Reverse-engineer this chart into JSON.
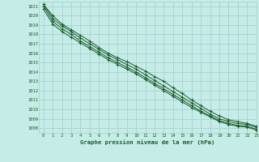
{
  "title": "Graphe pression niveau de la mer (hPa)",
  "background_color": "#c6ece8",
  "grid_color": "#a8d0cc",
  "line_color": "#1a5c2a",
  "text_color": "#1a5c2a",
  "xlim": [
    -0.5,
    23
  ],
  "ylim": [
    1007.5,
    1021.5
  ],
  "xticks": [
    0,
    1,
    2,
    3,
    4,
    5,
    6,
    7,
    8,
    9,
    10,
    11,
    12,
    13,
    14,
    15,
    16,
    17,
    18,
    19,
    20,
    21,
    22,
    23
  ],
  "yticks": [
    1008,
    1009,
    1010,
    1011,
    1012,
    1013,
    1014,
    1015,
    1016,
    1017,
    1018,
    1019,
    1020,
    1021
  ],
  "lines": [
    [
      1021.2,
      1020.0,
      1019.1,
      1018.5,
      1017.9,
      1017.3,
      1016.6,
      1016.0,
      1015.5,
      1015.1,
      1014.6,
      1014.1,
      1013.5,
      1013.0,
      1012.3,
      1011.7,
      1011.0,
      1010.4,
      1009.8,
      1009.3,
      1008.9,
      1008.7,
      1008.5,
      1008.2
    ],
    [
      1021.2,
      1019.7,
      1018.9,
      1018.3,
      1017.6,
      1017.0,
      1016.4,
      1015.8,
      1015.3,
      1014.8,
      1014.3,
      1013.7,
      1013.1,
      1012.5,
      1011.9,
      1011.3,
      1010.7,
      1010.1,
      1009.5,
      1009.0,
      1008.7,
      1008.5,
      1008.4,
      1008.1
    ],
    [
      1021.0,
      1019.4,
      1018.6,
      1018.0,
      1017.3,
      1016.7,
      1016.1,
      1015.5,
      1015.0,
      1014.5,
      1014.0,
      1013.4,
      1012.8,
      1012.2,
      1011.6,
      1011.0,
      1010.4,
      1009.8,
      1009.3,
      1008.8,
      1008.5,
      1008.3,
      1008.2,
      1007.9
    ],
    [
      1020.7,
      1019.1,
      1018.3,
      1017.7,
      1017.1,
      1016.5,
      1015.9,
      1015.3,
      1014.8,
      1014.3,
      1013.8,
      1013.2,
      1012.6,
      1012.0,
      1011.4,
      1010.8,
      1010.2,
      1009.7,
      1009.2,
      1008.7,
      1008.4,
      1008.2,
      1008.1,
      1007.8
    ]
  ]
}
